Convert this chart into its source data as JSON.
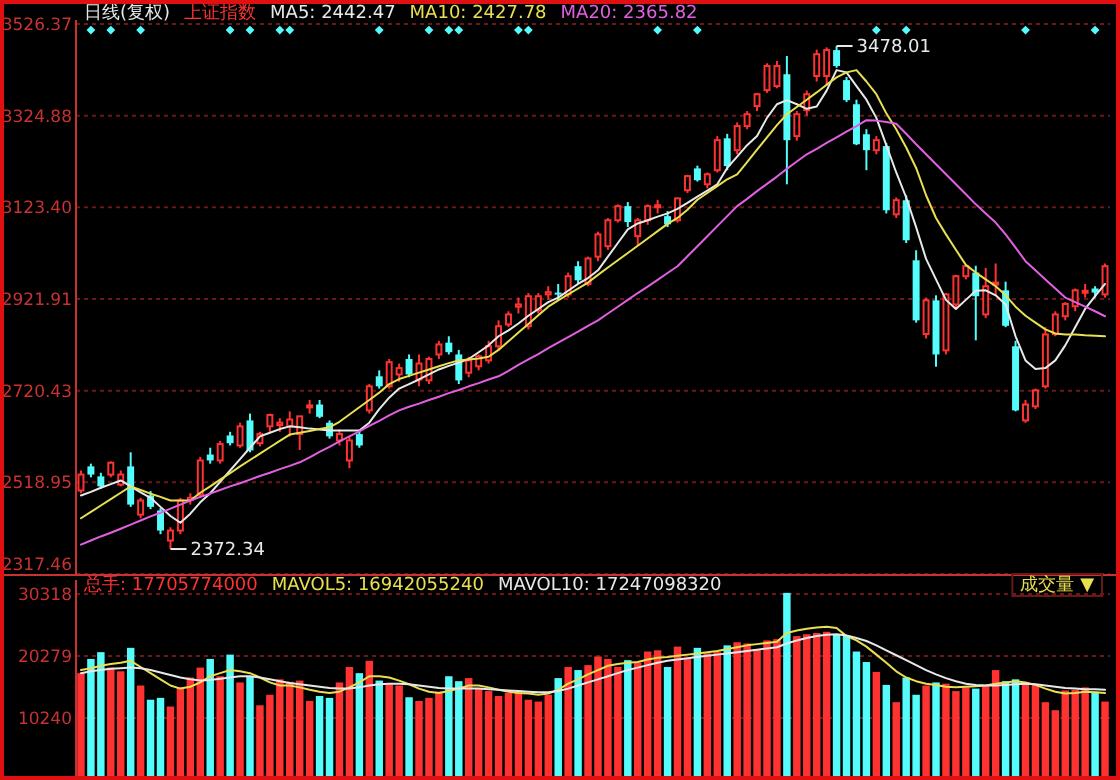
{
  "chart_data": [
    {
      "type": "candlestick",
      "title": "日线(复权)",
      "subtitle": "上证指数",
      "categories": [
        null,
        null,
        null,
        null,
        null,
        null,
        null,
        null,
        null,
        null,
        null,
        null,
        null,
        null,
        null,
        null,
        null,
        null,
        null,
        null,
        null,
        null,
        null,
        null,
        null,
        null,
        null,
        null,
        null,
        null,
        null,
        null,
        null,
        null,
        null,
        null,
        null,
        null,
        null,
        null,
        null,
        null,
        null,
        null,
        null,
        null,
        null,
        null,
        null,
        null,
        null,
        null,
        null,
        null,
        null,
        null,
        null,
        null,
        null,
        null,
        null,
        null,
        null,
        null,
        null,
        null,
        null,
        null,
        null,
        null,
        null,
        null,
        null,
        null,
        null,
        null,
        null,
        null,
        null,
        null,
        null,
        null,
        null,
        null,
        null,
        null,
        null,
        null,
        null,
        null,
        null,
        null,
        null,
        null,
        null,
        null,
        null,
        null,
        null,
        null,
        null,
        null,
        null,
        null
      ],
      "ohlc": [
        [
          2501,
          2545,
          2495,
          2536
        ],
        [
          2554,
          2560,
          2530,
          2536
        ],
        [
          2532,
          2540,
          2505,
          2510
        ],
        [
          2536,
          2565,
          2530,
          2562
        ],
        [
          2514,
          2545,
          2510,
          2536
        ],
        [
          2554,
          2585,
          2465,
          2470
        ],
        [
          2448,
          2485,
          2440,
          2479
        ],
        [
          2490,
          2500,
          2460,
          2465
        ],
        [
          2457,
          2462,
          2405,
          2413
        ],
        [
          2391,
          2420,
          2372.34,
          2413
        ],
        [
          2413,
          2485,
          2405,
          2479
        ],
        [
          2480,
          2495,
          2470,
          2485
        ],
        [
          2492,
          2575,
          2485,
          2567
        ],
        [
          2580,
          2595,
          2560,
          2567
        ],
        [
          2567,
          2610,
          2560,
          2603
        ],
        [
          2622,
          2630,
          2600,
          2605
        ],
        [
          2600,
          2650,
          2595,
          2642
        ],
        [
          2655,
          2670,
          2585,
          2589
        ],
        [
          2605,
          2630,
          2598,
          2625
        ],
        [
          2642,
          2670,
          2630,
          2667
        ],
        [
          2645,
          2660,
          2630,
          2650
        ],
        [
          2642,
          2675,
          2620,
          2657
        ],
        [
          2625,
          2665,
          2590,
          2664
        ],
        [
          2685,
          2700,
          2670,
          2688
        ],
        [
          2690,
          2700,
          2660,
          2663
        ],
        [
          2650,
          2655,
          2615,
          2620
        ],
        [
          2611,
          2635,
          2600,
          2625
        ],
        [
          2567,
          2620,
          2550,
          2611
        ],
        [
          2625,
          2632,
          2595,
          2600
        ],
        [
          2677,
          2735,
          2670,
          2730
        ],
        [
          2752,
          2765,
          2725,
          2730
        ],
        [
          2730,
          2790,
          2725,
          2783
        ],
        [
          2756,
          2780,
          2740,
          2770
        ],
        [
          2790,
          2800,
          2750,
          2756
        ],
        [
          2745,
          2800,
          2730,
          2780
        ],
        [
          2743,
          2795,
          2735,
          2790
        ],
        [
          2800,
          2830,
          2790,
          2822
        ],
        [
          2826,
          2840,
          2800,
          2805
        ],
        [
          2800,
          2810,
          2735,
          2743
        ],
        [
          2760,
          2795,
          2750,
          2787
        ],
        [
          2774,
          2800,
          2765,
          2796
        ],
        [
          2787,
          2830,
          2780,
          2818
        ],
        [
          2818,
          2875,
          2810,
          2862
        ],
        [
          2866,
          2895,
          2860,
          2888
        ],
        [
          2905,
          2925,
          2890,
          2910
        ],
        [
          2862,
          2935,
          2855,
          2928
        ],
        [
          2897,
          2935,
          2890,
          2928
        ],
        [
          2932,
          2950,
          2920,
          2937
        ],
        [
          2936,
          2955,
          2920,
          2932
        ],
        [
          2932,
          2980,
          2925,
          2972
        ],
        [
          2994,
          3005,
          2955,
          2963
        ],
        [
          2955,
          3015,
          2950,
          3011
        ],
        [
          3015,
          3070,
          3005,
          3064
        ],
        [
          3038,
          3100,
          3030,
          3095
        ],
        [
          3095,
          3130,
          3090,
          3126
        ],
        [
          3126,
          3135,
          3080,
          3091
        ],
        [
          3060,
          3100,
          3040,
          3095
        ],
        [
          3095,
          3130,
          3085,
          3126
        ],
        [
          3124,
          3140,
          3110,
          3128
        ],
        [
          3104,
          3115,
          3080,
          3086
        ],
        [
          3095,
          3145,
          3090,
          3143
        ],
        [
          3161,
          3195,
          3155,
          3192
        ],
        [
          3209,
          3215,
          3180,
          3183
        ],
        [
          3174,
          3200,
          3165,
          3196
        ],
        [
          3205,
          3280,
          3200,
          3271
        ],
        [
          3275,
          3285,
          3205,
          3214
        ],
        [
          3249,
          3310,
          3240,
          3302
        ],
        [
          3302,
          3335,
          3295,
          3328
        ],
        [
          3346,
          3375,
          3335,
          3372
        ],
        [
          3381,
          3440,
          3375,
          3434
        ],
        [
          3390,
          3445,
          3385,
          3434
        ],
        [
          3416,
          3456,
          3174,
          3271
        ],
        [
          3280,
          3335,
          3270,
          3328
        ],
        [
          3337,
          3380,
          3325,
          3372
        ],
        [
          3412,
          3470,
          3400,
          3460
        ],
        [
          3412,
          3475,
          3390,
          3469
        ],
        [
          3469,
          3478.01,
          3430,
          3434
        ],
        [
          3403,
          3410,
          3355,
          3359
        ],
        [
          3350,
          3360,
          3260,
          3262
        ],
        [
          3284,
          3295,
          3205,
          3249
        ],
        [
          3249,
          3280,
          3240,
          3271
        ],
        [
          3258,
          3265,
          3110,
          3117
        ],
        [
          3108,
          3145,
          3100,
          3139
        ],
        [
          3139,
          3150,
          3045,
          3051
        ],
        [
          3007,
          3029,
          2870,
          2875
        ],
        [
          2845,
          2925,
          2835,
          2919
        ],
        [
          2919,
          2930,
          2773,
          2800
        ],
        [
          2809,
          2935,
          2800,
          2932
        ],
        [
          2910,
          2975,
          2900,
          2972
        ],
        [
          2972,
          2995,
          2965,
          2994
        ],
        [
          2980,
          2995,
          2831,
          2928
        ],
        [
          2888,
          2990,
          2880,
          2950
        ],
        [
          2955,
          3000,
          2930,
          2958
        ],
        [
          2941,
          2960,
          2860,
          2863
        ],
        [
          2818,
          2830,
          2675,
          2677
        ],
        [
          2655,
          2700,
          2650,
          2690
        ],
        [
          2686,
          2725,
          2680,
          2721
        ],
        [
          2730,
          2860,
          2725,
          2844
        ],
        [
          2845,
          2895,
          2840,
          2888
        ],
        [
          2884,
          2915,
          2875,
          2911
        ],
        [
          2906,
          2945,
          2895,
          2941
        ],
        [
          2937,
          2955,
          2925,
          2940
        ],
        [
          2945,
          2950,
          2925,
          2936
        ],
        [
          2932,
          3000,
          2925,
          2994
        ]
      ],
      "colors": [
        "#ff3232",
        "#54fcfc",
        "#54fcfc",
        "#ff3232",
        "#ff3232",
        "#54fcfc",
        "#ff3232",
        "#54fcfc",
        "#54fcfc",
        "#ff3232",
        "#ff3232",
        "#ff3232",
        "#ff3232",
        "#54fcfc",
        "#ff3232",
        "#54fcfc",
        "#ff3232",
        "#54fcfc",
        "#ff3232",
        "#ff3232",
        "#ff3232",
        "#ff3232",
        "#ff3232",
        "#ff3232",
        "#54fcfc",
        "#54fcfc",
        "#ff3232",
        "#ff3232",
        "#54fcfc",
        "#ff3232",
        "#54fcfc",
        "#ff3232",
        "#ff3232",
        "#54fcfc",
        "#ff3232",
        "#ff3232",
        "#ff3232",
        "#54fcfc",
        "#54fcfc",
        "#ff3232",
        "#ff3232",
        "#ff3232",
        "#ff3232",
        "#ff3232",
        "#ff3232",
        "#ff3232",
        "#ff3232",
        "#ff3232",
        "#54fcfc",
        "#ff3232",
        "#54fcfc",
        "#ff3232",
        "#ff3232",
        "#ff3232",
        "#ff3232",
        "#54fcfc",
        "#ff3232",
        "#ff3232",
        "#ff3232",
        "#54fcfc",
        "#ff3232",
        "#ff3232",
        "#54fcfc",
        "#ff3232",
        "#ff3232",
        "#54fcfc",
        "#ff3232",
        "#ff3232",
        "#ff3232",
        "#ff3232",
        "#ff3232",
        "#54fcfc",
        "#ff3232",
        "#ff3232",
        "#ff3232",
        "#ff3232",
        "#54fcfc",
        "#54fcfc",
        "#54fcfc",
        "#54fcfc",
        "#ff3232",
        "#54fcfc",
        "#ff3232",
        "#54fcfc",
        "#54fcfc",
        "#ff3232",
        "#54fcfc",
        "#ff3232",
        "#ff3232",
        "#ff3232",
        "#54fcfc",
        "#ff3232",
        "#ff3232",
        "#54fcfc",
        "#54fcfc",
        "#ff3232",
        "#ff3232",
        "#ff3232",
        "#ff3232",
        "#ff3232",
        "#ff3232",
        "#ff3232",
        "#54fcfc",
        "#ff3232"
      ],
      "series": [
        {
          "type": "line",
          "name": "MA5: 2442.47",
          "color": "#e8e8e8",
          "values": [
            2490,
            2498,
            2507,
            2515,
            2523,
            2510,
            2497,
            2485,
            2465,
            2445,
            2430,
            2450,
            2475,
            2495,
            2520,
            2545,
            2570,
            2595,
            2620,
            2628,
            2636,
            2642,
            2640,
            2637,
            2635,
            2633,
            2633,
            2633,
            2633,
            2650,
            2680,
            2705,
            2725,
            2735,
            2745,
            2756,
            2767,
            2775,
            2782,
            2790,
            2805,
            2820,
            2840,
            2853,
            2868,
            2885,
            2900,
            2915,
            2925,
            2940,
            2955,
            2968,
            2985,
            3015,
            3045,
            3075,
            3088,
            3095,
            3103,
            3110,
            3120,
            3133,
            3147,
            3160,
            3174,
            3210,
            3235,
            3260,
            3280,
            3320,
            3350,
            3359,
            3350,
            3340,
            3345,
            3380,
            3425,
            3420,
            3390,
            3360,
            3320,
            3260,
            3200,
            3145,
            3080,
            3010,
            2965,
            2920,
            2900,
            2920,
            2940,
            2941,
            2930,
            2910,
            2840,
            2787,
            2768,
            2770,
            2787,
            2820,
            2860,
            2900,
            2928,
            2955
          ]
        },
        {
          "type": "line",
          "name": "MA10: 2427.78",
          "color": "#e8e050",
          "values": [
            2440,
            2454,
            2468,
            2482,
            2496,
            2510,
            2502,
            2494,
            2487,
            2479,
            2479,
            2479,
            2496,
            2510,
            2525,
            2539,
            2554,
            2568,
            2582,
            2596,
            2610,
            2624,
            2628,
            2632,
            2636,
            2640,
            2652,
            2668,
            2684,
            2700,
            2716,
            2735,
            2746,
            2753,
            2760,
            2767,
            2774,
            2781,
            2787,
            2789,
            2791,
            2795,
            2810,
            2829,
            2848,
            2867,
            2886,
            2905,
            2919,
            2932,
            2945,
            2958,
            2975,
            2991,
            3007,
            3023,
            3039,
            3055,
            3071,
            3087,
            3100,
            3118,
            3140,
            3155,
            3170,
            3185,
            3196,
            3223,
            3250,
            3277,
            3304,
            3328,
            3344,
            3360,
            3376,
            3393,
            3409,
            3420,
            3425,
            3400,
            3372,
            3330,
            3295,
            3255,
            3210,
            3150,
            3100,
            3064,
            3030,
            2997,
            2980,
            2965,
            2950,
            2930,
            2905,
            2885,
            2870,
            2855,
            2846,
            2844,
            2844,
            2842,
            2841,
            2840
          ]
        },
        {
          "type": "line",
          "name": "MA20: 2365.82",
          "color": "#e060e0",
          "values": [
            2382,
            2391,
            2400,
            2408,
            2417,
            2426,
            2435,
            2444,
            2452,
            2461,
            2470,
            2479,
            2487,
            2494,
            2502,
            2510,
            2517,
            2525,
            2533,
            2540,
            2548,
            2555,
            2563,
            2574,
            2586,
            2597,
            2609,
            2620,
            2631,
            2643,
            2654,
            2666,
            2677,
            2685,
            2692,
            2700,
            2707,
            2715,
            2722,
            2730,
            2737,
            2745,
            2752,
            2764,
            2777,
            2789,
            2801,
            2814,
            2826,
            2838,
            2850,
            2863,
            2875,
            2890,
            2905,
            2920,
            2935,
            2949,
            2964,
            2979,
            2994,
            3016,
            3038,
            3060,
            3082,
            3104,
            3126,
            3142,
            3159,
            3175,
            3191,
            3208,
            3224,
            3240,
            3252,
            3265,
            3277,
            3290,
            3302,
            3315,
            3314,
            3311,
            3307,
            3285,
            3262,
            3240,
            3218,
            3196,
            3174,
            3152,
            3130,
            3110,
            3090,
            3064,
            3035,
            3005,
            2985,
            2965,
            2945,
            2925,
            2915,
            2905,
            2895,
            2884
          ]
        },
        {
          "type": "scatter",
          "color": "#54fcfc",
          "marker": "diamond",
          "values": [
            null,
            3513,
            null,
            3513,
            null,
            null,
            3513,
            null,
            null,
            null,
            null,
            null,
            null,
            null,
            null,
            3513,
            null,
            3513,
            null,
            null,
            3513,
            3513,
            null,
            null,
            null,
            null,
            null,
            null,
            null,
            null,
            3513,
            null,
            null,
            null,
            null,
            3513,
            null,
            3513,
            3513,
            null,
            null,
            null,
            null,
            null,
            3513,
            3513,
            null,
            null,
            null,
            null,
            null,
            null,
            null,
            null,
            null,
            null,
            null,
            null,
            3513,
            null,
            null,
            null,
            3513,
            null,
            null,
            null,
            null,
            null,
            null,
            null,
            null,
            null,
            null,
            null,
            null,
            null,
            null,
            null,
            null,
            null,
            3513,
            null,
            null,
            3513,
            null,
            null,
            null,
            null,
            null,
            null,
            null,
            null,
            null,
            null,
            null,
            3513,
            null,
            null,
            null,
            null,
            null,
            null,
            3513,
            null
          ]
        }
      ],
      "ylim": [
        2317.46,
        3526.37
      ],
      "yticks": [
        3526.37,
        3324.88,
        {
          "value": 3123.4,
          "label": "3123.40"
        },
        2921.91,
        2720.43,
        2518.95,
        2317.46
      ],
      "grid": "y",
      "legend": "top left",
      "annotations": [
        "3478.01",
        "2372.34"
      ]
    },
    {
      "type": "bar",
      "categories": [
        null,
        null,
        null,
        null,
        null,
        null,
        null,
        null,
        null,
        null,
        null,
        null,
        null,
        null,
        null,
        null,
        null,
        null,
        null,
        null,
        null,
        null,
        null,
        null,
        null,
        null,
        null,
        null,
        null,
        null,
        null,
        null,
        null,
        null,
        null,
        null,
        null,
        null,
        null,
        null,
        null,
        null,
        null,
        null,
        null,
        null,
        null,
        null,
        null,
        null,
        null,
        null,
        null,
        null,
        null,
        null,
        null,
        null,
        null,
        null,
        null,
        null,
        null,
        null,
        null,
        null,
        null,
        null,
        null,
        null,
        null,
        null,
        null,
        null,
        null,
        null,
        null,
        null,
        null,
        null,
        null,
        null,
        null,
        null,
        null,
        null,
        null,
        null,
        null,
        null,
        null,
        null,
        null,
        null,
        null,
        null,
        null,
        null,
        null,
        null,
        null,
        null,
        null,
        null
      ],
      "series": [
        {
          "color": "#ff3232",
          "values": [
            17500,
            null,
            null,
            18400,
            17800,
            null,
            15500,
            null,
            null,
            12100,
            15200,
            16800,
            18400,
            null,
            17000,
            null,
            16000,
            null,
            12300,
            14000,
            16500,
            16100,
            16300,
            13000,
            null,
            null,
            16000,
            18500,
            null,
            19500,
            null,
            15700,
            15500,
            null,
            13000,
            13500,
            14500,
            null,
            null,
            16700,
            15000,
            14600,
            13800,
            14300,
            14700,
            13200,
            12900,
            14000,
            null,
            18500,
            null,
            18800,
            20200,
            19800,
            18500,
            null,
            19200,
            21000,
            21200,
            null,
            21800,
            19800,
            null,
            20700,
            20900,
            null,
            22500,
            22300,
            21400,
            22800,
            23000,
            null,
            23500,
            23800,
            24000,
            24200,
            null,
            null,
            null,
            null,
            17700,
            null,
            12800,
            null,
            null,
            15500,
            null,
            15800,
            14600,
            15200,
            null,
            15400,
            18000,
            null,
            null,
            16000,
            15700,
            12800,
            11500,
            14700,
            14800,
            15200,
            null,
            12900
          ]
        },
        {
          "color": "#54fcfc",
          "values": [
            null,
            19800,
            20900,
            null,
            null,
            21600,
            null,
            13200,
            13500,
            null,
            null,
            null,
            null,
            19800,
            null,
            20500,
            null,
            17000,
            null,
            null,
            null,
            null,
            null,
            null,
            13800,
            13500,
            null,
            null,
            17500,
            null,
            16300,
            null,
            null,
            13600,
            null,
            null,
            null,
            17000,
            16200,
            null,
            null,
            null,
            null,
            null,
            null,
            null,
            null,
            null,
            16700,
            null,
            18000,
            null,
            null,
            null,
            null,
            19600,
            null,
            null,
            null,
            18500,
            null,
            null,
            21600,
            null,
            null,
            22000,
            null,
            null,
            null,
            null,
            null,
            30500,
            null,
            null,
            null,
            null,
            23800,
            23600,
            21000,
            19300,
            null,
            15600,
            null,
            16800,
            14000,
            null,
            16000,
            null,
            null,
            null,
            15000,
            null,
            null,
            16200,
            16500,
            null,
            null,
            null,
            null,
            null,
            null,
            null,
            14500,
            null
          ]
        },
        {
          "type": "line",
          "name": "MAVOL5: 16942055240",
          "color": "#e8e050",
          "values": [
            18000,
            18300,
            18700,
            19000,
            19200,
            19500,
            18500,
            17500,
            16500,
            15500,
            15000,
            15300,
            16000,
            17000,
            17500,
            18000,
            17800,
            17500,
            16800,
            16000,
            15500,
            15500,
            15200,
            14800,
            14500,
            14300,
            14500,
            15200,
            16000,
            17000,
            17000,
            16800,
            16300,
            15700,
            15000,
            14500,
            14300,
            14600,
            15000,
            15500,
            15500,
            15200,
            14800,
            14500,
            14300,
            14200,
            14000,
            14200,
            14800,
            15800,
            16500,
            17300,
            18000,
            18700,
            19000,
            19200,
            19300,
            19700,
            20000,
            20100,
            20300,
            20500,
            20700,
            20900,
            21100,
            21400,
            21700,
            22000,
            22200,
            22400,
            22600,
            24000,
            24400,
            24700,
            24900,
            25000,
            24800,
            23500,
            22800,
            21800,
            20500,
            19200,
            17800,
            16800,
            16200,
            15800,
            15600,
            15300,
            15200,
            15300,
            15400,
            15500,
            15800,
            16000,
            16200,
            16000,
            15600,
            15000,
            14500,
            14200,
            14300,
            14500,
            14400,
            14300
          ]
        },
        {
          "type": "line",
          "name": "MAVOL10: 17247098320",
          "color": "#e8e8e8",
          "values": [
            17500,
            17800,
            18000,
            18200,
            18300,
            18400,
            18300,
            18000,
            17600,
            17200,
            16800,
            16500,
            16300,
            16400,
            16600,
            16800,
            17000,
            17000,
            16800,
            16500,
            16200,
            15900,
            15700,
            15500,
            15300,
            15100,
            15000,
            15000,
            15200,
            15500,
            15700,
            15800,
            15800,
            15700,
            15500,
            15300,
            15100,
            15000,
            15000,
            15000,
            15000,
            14900,
            14800,
            14700,
            14600,
            14500,
            14400,
            14400,
            14600,
            15000,
            15500,
            16000,
            16500,
            17000,
            17500,
            18000,
            18400,
            18800,
            19200,
            19500,
            19700,
            19900,
            20100,
            20300,
            20500,
            20700,
            20900,
            21100,
            21300,
            21500,
            21700,
            22300,
            22800,
            23200,
            23500,
            23700,
            23800,
            23600,
            23200,
            22700,
            22000,
            21200,
            20400,
            19600,
            18800,
            18000,
            17300,
            16700,
            16200,
            15800,
            15600,
            15500,
            15500,
            15600,
            15700,
            15800,
            15700,
            15500,
            15300,
            15100,
            15000,
            14900,
            14900,
            14800
          ]
        }
      ],
      "ylim": [
        850,
        31935
      ],
      "yticks": [
        30318,
        20279,
        10240
      ],
      "grid": "y",
      "legend": "top left",
      "annotations": [
        "总手: 17705774000",
        "成交量 ▼"
      ]
    }
  ]
}
